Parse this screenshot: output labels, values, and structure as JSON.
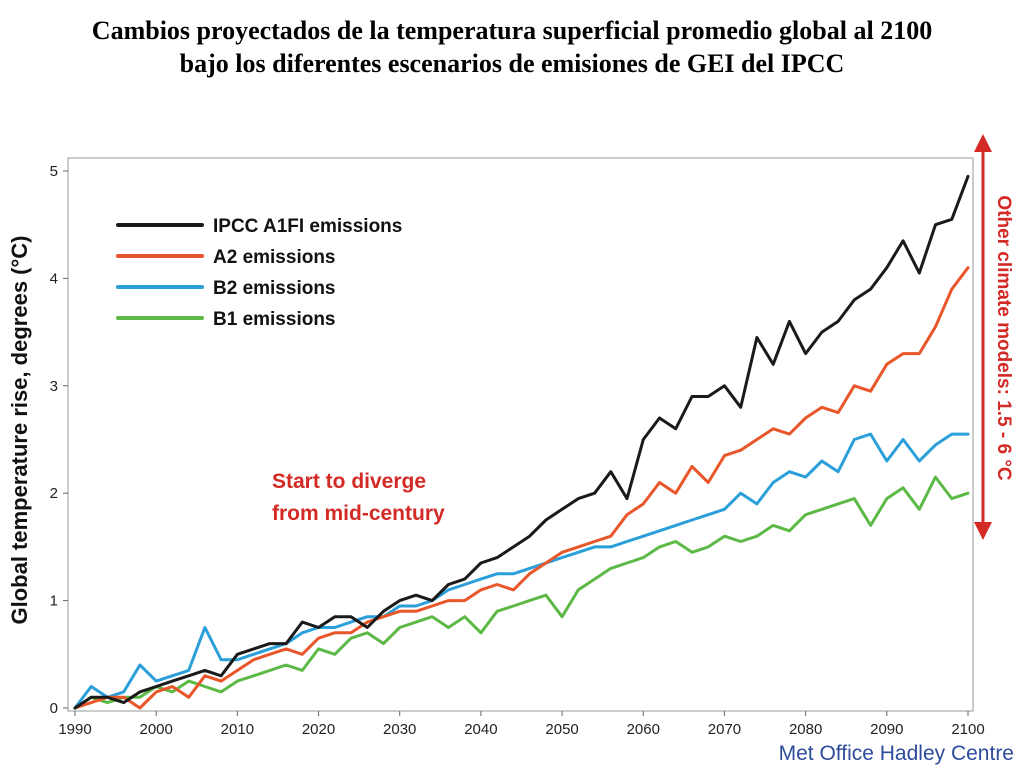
{
  "title": {
    "line1": "Cambios proyectados de la temperatura superficial promedio global al 2100",
    "line2": "bajo los diferentes escenarios de emisiones de GEI del IPCC"
  },
  "credit": "Met Office Hadley Centre",
  "colors": {
    "annotation": "#d42a26",
    "credit": "#2e4c9c",
    "frame": "#999999"
  },
  "chart_data": {
    "type": "line",
    "ylabel": "Global temperature rise, degrees (°C)",
    "xlim": [
      1990,
      2100
    ],
    "ylim": [
      0,
      5
    ],
    "xticks": [
      1990,
      2000,
      2010,
      2020,
      2030,
      2040,
      2050,
      2060,
      2070,
      2080,
      2090,
      2100
    ],
    "yticks": [
      0,
      1,
      2,
      3,
      4,
      5
    ],
    "grid": false,
    "legend_position": "top-left",
    "annotations": [
      {
        "text_lines": [
          "Start to diverge",
          "from mid-century"
        ],
        "color": "#d42a26"
      },
      {
        "text": "Other climate models: 1.5 - 6 °C",
        "color": "#d42a26",
        "range": [
          1.5,
          6
        ]
      }
    ],
    "series": [
      {
        "name": "IPCC A1FI emissions",
        "color": "#1a1a1a",
        "x": [
          1990,
          1992,
          1994,
          1996,
          1998,
          2000,
          2002,
          2004,
          2006,
          2008,
          2010,
          2012,
          2014,
          2016,
          2018,
          2020,
          2022,
          2024,
          2026,
          2028,
          2030,
          2032,
          2034,
          2036,
          2038,
          2040,
          2042,
          2044,
          2046,
          2048,
          2050,
          2052,
          2054,
          2056,
          2058,
          2060,
          2062,
          2064,
          2066,
          2068,
          2070,
          2072,
          2074,
          2076,
          2078,
          2080,
          2082,
          2084,
          2086,
          2088,
          2090,
          2092,
          2094,
          2096,
          2098,
          2100
        ],
        "values": [
          0.0,
          0.1,
          0.1,
          0.05,
          0.15,
          0.2,
          0.25,
          0.3,
          0.35,
          0.3,
          0.5,
          0.55,
          0.6,
          0.6,
          0.8,
          0.75,
          0.85,
          0.85,
          0.75,
          0.9,
          1.0,
          1.05,
          1.0,
          1.15,
          1.2,
          1.35,
          1.4,
          1.5,
          1.6,
          1.75,
          1.85,
          1.95,
          2.0,
          2.2,
          1.95,
          2.5,
          2.7,
          2.6,
          2.9,
          2.9,
          3.0,
          2.8,
          3.45,
          3.2,
          3.6,
          3.3,
          3.5,
          3.6,
          3.8,
          3.9,
          4.1,
          4.35,
          4.05,
          4.5,
          4.55,
          4.95
        ]
      },
      {
        "name": "A2 emissions",
        "color": "#e8562a",
        "x": [
          1990,
          1992,
          1994,
          1996,
          1998,
          2000,
          2002,
          2004,
          2006,
          2008,
          2010,
          2012,
          2014,
          2016,
          2018,
          2020,
          2022,
          2024,
          2026,
          2028,
          2030,
          2032,
          2034,
          2036,
          2038,
          2040,
          2042,
          2044,
          2046,
          2048,
          2050,
          2052,
          2054,
          2056,
          2058,
          2060,
          2062,
          2064,
          2066,
          2068,
          2070,
          2072,
          2074,
          2076,
          2078,
          2080,
          2082,
          2084,
          2086,
          2088,
          2090,
          2092,
          2094,
          2096,
          2098,
          2100
        ],
        "values": [
          0.0,
          0.05,
          0.1,
          0.1,
          0.0,
          0.15,
          0.2,
          0.1,
          0.3,
          0.25,
          0.35,
          0.45,
          0.5,
          0.55,
          0.5,
          0.65,
          0.7,
          0.7,
          0.8,
          0.85,
          0.9,
          0.9,
          0.95,
          1.0,
          1.0,
          1.1,
          1.15,
          1.1,
          1.25,
          1.35,
          1.45,
          1.5,
          1.55,
          1.6,
          1.8,
          1.9,
          2.1,
          2.0,
          2.25,
          2.1,
          2.35,
          2.4,
          2.5,
          2.6,
          2.55,
          2.7,
          2.8,
          2.75,
          3.0,
          2.95,
          3.2,
          3.3,
          3.3,
          3.55,
          3.9,
          4.1
        ]
      },
      {
        "name": "B2 emissions",
        "color": "#2b9fd9",
        "x": [
          1990,
          1992,
          1994,
          1996,
          1998,
          2000,
          2002,
          2004,
          2006,
          2008,
          2010,
          2012,
          2014,
          2016,
          2018,
          2020,
          2022,
          2024,
          2026,
          2028,
          2030,
          2032,
          2034,
          2036,
          2038,
          2040,
          2042,
          2044,
          2046,
          2048,
          2050,
          2052,
          2054,
          2056,
          2058,
          2060,
          2062,
          2064,
          2066,
          2068,
          2070,
          2072,
          2074,
          2076,
          2078,
          2080,
          2082,
          2084,
          2086,
          2088,
          2090,
          2092,
          2094,
          2096,
          2098,
          2100
        ],
        "values": [
          0.0,
          0.2,
          0.1,
          0.15,
          0.4,
          0.25,
          0.3,
          0.35,
          0.75,
          0.45,
          0.45,
          0.5,
          0.55,
          0.6,
          0.7,
          0.75,
          0.75,
          0.8,
          0.85,
          0.85,
          0.95,
          0.95,
          1.0,
          1.1,
          1.15,
          1.2,
          1.25,
          1.25,
          1.3,
          1.35,
          1.4,
          1.45,
          1.5,
          1.5,
          1.55,
          1.6,
          1.65,
          1.7,
          1.75,
          1.8,
          1.85,
          2.0,
          1.9,
          2.1,
          2.2,
          2.15,
          2.3,
          2.2,
          2.5,
          2.55,
          2.3,
          2.5,
          2.3,
          2.45,
          2.55,
          2.55
        ]
      },
      {
        "name": "B1 emissions",
        "color": "#5cb946",
        "x": [
          1990,
          1992,
          1994,
          1996,
          1998,
          2000,
          2002,
          2004,
          2006,
          2008,
          2010,
          2012,
          2014,
          2016,
          2018,
          2020,
          2022,
          2024,
          2026,
          2028,
          2030,
          2032,
          2034,
          2036,
          2038,
          2040,
          2042,
          2044,
          2046,
          2048,
          2050,
          2052,
          2054,
          2056,
          2058,
          2060,
          2062,
          2064,
          2066,
          2068,
          2070,
          2072,
          2074,
          2076,
          2078,
          2080,
          2082,
          2084,
          2086,
          2088,
          2090,
          2092,
          2094,
          2096,
          2098,
          2100
        ],
        "values": [
          0.0,
          0.1,
          0.05,
          0.1,
          0.1,
          0.2,
          0.15,
          0.25,
          0.2,
          0.15,
          0.25,
          0.3,
          0.35,
          0.4,
          0.35,
          0.55,
          0.5,
          0.65,
          0.7,
          0.6,
          0.75,
          0.8,
          0.85,
          0.75,
          0.85,
          0.7,
          0.9,
          0.95,
          1.0,
          1.05,
          0.85,
          1.1,
          1.2,
          1.3,
          1.35,
          1.4,
          1.5,
          1.55,
          1.45,
          1.5,
          1.6,
          1.55,
          1.6,
          1.7,
          1.65,
          1.8,
          1.85,
          1.9,
          1.95,
          1.7,
          1.95,
          2.05,
          1.85,
          2.15,
          1.95,
          2.0
        ]
      }
    ]
  }
}
